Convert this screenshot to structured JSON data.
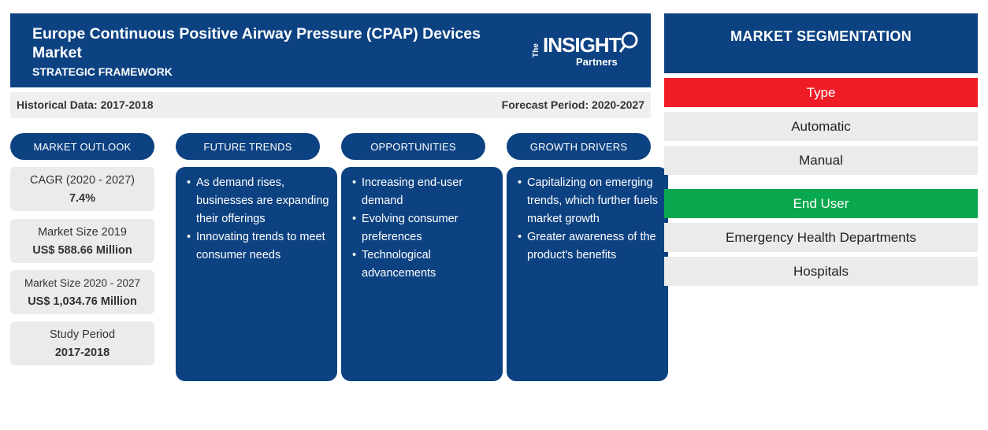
{
  "header": {
    "title": "Europe Continuous Positive Airway Pressure (CPAP) Devices Market",
    "subtitle": "STRATEGIC FRAMEWORK",
    "logo": {
      "the": "The",
      "insight": "INSIGHT",
      "partners": "Partners"
    }
  },
  "period_bar": {
    "historical": "Historical Data: 2017-2018",
    "forecast": "Forecast Period: 2020-2027"
  },
  "columns": {
    "market_outlook": "MARKET OUTLOOK",
    "future_trends": "FUTURE TRENDS",
    "opportunities": "OPPORTUNITIES",
    "growth_drivers": "GROWTH DRIVERS"
  },
  "outlook": [
    {
      "label": "CAGR (2020 - 2027)",
      "value": "7.4%"
    },
    {
      "label": "Market Size 2019",
      "value": "US$ 588.66 Million"
    },
    {
      "label": "Market Size 2020 - 2027",
      "value": "US$ 1,034.76 Million"
    },
    {
      "label": "Study Period",
      "value": "2017-2018"
    }
  ],
  "future_trends": [
    "As demand rises, businesses are expanding their offerings",
    "Innovating trends to meet consumer needs"
  ],
  "opportunities": [
    "Increasing end-user demand",
    "Evolving consumer preferences",
    "Technological advancements"
  ],
  "growth_drivers": [
    "Capitalizing on emerging trends, which further fuels market growth",
    "Greater awareness of the product's benefits"
  ],
  "segmentation": {
    "title": "MARKET SEGMENTATION",
    "type": {
      "label": "Type",
      "color": "#ee1c25",
      "items": [
        "Automatic",
        "Manual"
      ]
    },
    "end_user": {
      "label": "End User",
      "color": "#09a84e",
      "items": [
        "Emergency Health Departments",
        "Hospitals"
      ]
    }
  },
  "colors": {
    "primary": "#0d4282",
    "panel_gray": "#ebebeb"
  }
}
